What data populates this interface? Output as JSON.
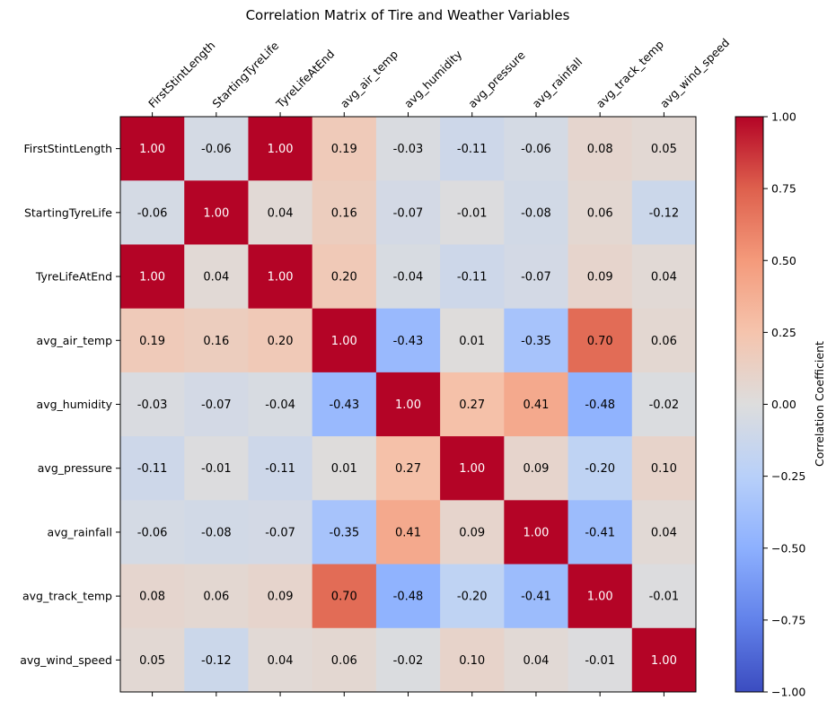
{
  "chart_data": {
    "type": "heatmap",
    "title": "Correlation Matrix of Tire and Weather Variables",
    "x_labels": [
      "FirstStintLength",
      "StartingTyreLife",
      "TyreLifeAtEnd",
      "avg_air_temp",
      "avg_humidity",
      "avg_pressure",
      "avg_rainfall",
      "avg_track_temp",
      "avg_wind_speed"
    ],
    "y_labels": [
      "FirstStintLength",
      "StartingTyreLife",
      "TyreLifeAtEnd",
      "avg_air_temp",
      "avg_humidity",
      "avg_pressure",
      "avg_rainfall",
      "avg_track_temp",
      "avg_wind_speed"
    ],
    "values": [
      [
        1.0,
        -0.06,
        1.0,
        0.19,
        -0.03,
        -0.11,
        -0.06,
        0.08,
        0.05
      ],
      [
        -0.06,
        1.0,
        0.04,
        0.16,
        -0.07,
        -0.01,
        -0.08,
        0.06,
        -0.12
      ],
      [
        1.0,
        0.04,
        1.0,
        0.2,
        -0.04,
        -0.11,
        -0.07,
        0.09,
        0.04
      ],
      [
        0.19,
        0.16,
        0.2,
        1.0,
        -0.43,
        0.01,
        -0.35,
        0.7,
        0.06
      ],
      [
        -0.03,
        -0.07,
        -0.04,
        -0.43,
        1.0,
        0.27,
        0.41,
        -0.48,
        -0.02
      ],
      [
        -0.11,
        -0.01,
        -0.11,
        0.01,
        0.27,
        1.0,
        0.09,
        -0.2,
        0.1
      ],
      [
        -0.06,
        -0.08,
        -0.07,
        -0.35,
        0.41,
        0.09,
        1.0,
        -0.41,
        0.04
      ],
      [
        0.08,
        0.06,
        0.09,
        0.7,
        -0.48,
        -0.2,
        -0.41,
        1.0,
        -0.01
      ],
      [
        0.05,
        -0.12,
        0.04,
        0.06,
        -0.02,
        0.1,
        0.04,
        -0.01,
        1.0
      ]
    ],
    "value_format": "2 decimals",
    "colormap": "coolwarm",
    "vmin": -1.0,
    "vmax": 1.0,
    "x_tick_position": "top",
    "x_tick_rotation": 45,
    "colorbar": {
      "label": "Correlation Coefficient",
      "ticks": [
        -1.0,
        -0.75,
        -0.5,
        -0.25,
        0.0,
        0.25,
        0.5,
        0.75,
        1.0
      ],
      "tick_labels": [
        "−1.00",
        "−0.75",
        "−0.50",
        "−0.25",
        "0.00",
        "0.25",
        "0.50",
        "0.75",
        "1.00"
      ],
      "placement": "right"
    },
    "grid": false
  }
}
